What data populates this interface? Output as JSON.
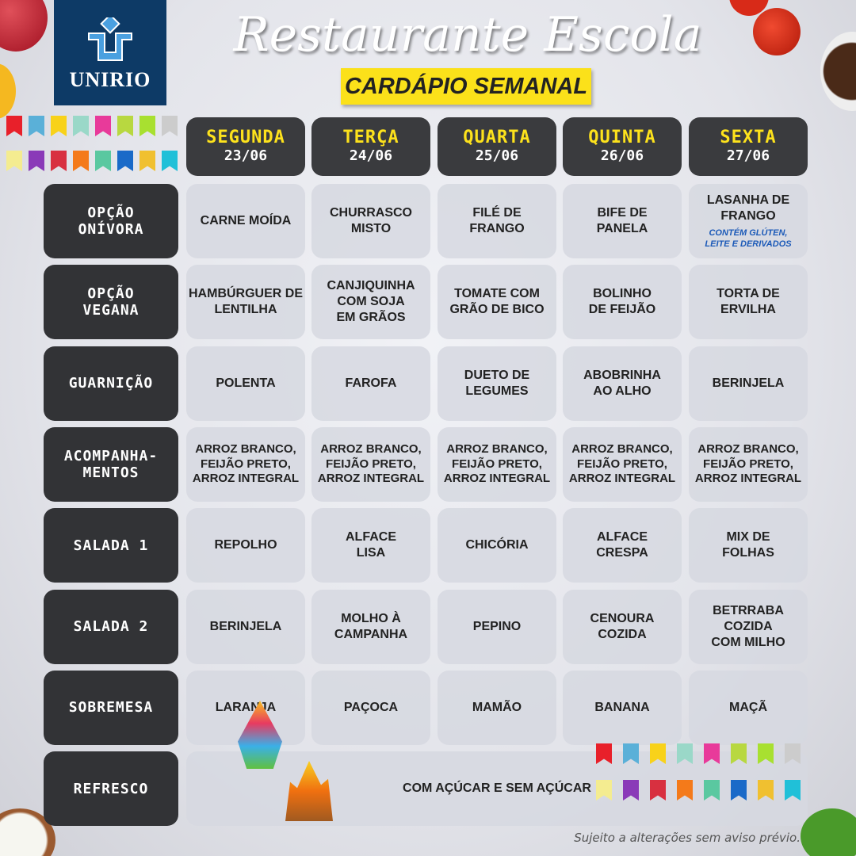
{
  "logo": {
    "text": "UNIRIO"
  },
  "title": "Restaurante Escola",
  "subtitle": "CARDÁPIO SEMANAL",
  "days": [
    {
      "name": "SEGUNDA",
      "date": "23/06"
    },
    {
      "name": "TERÇA",
      "date": "24/06"
    },
    {
      "name": "QUARTA",
      "date": "25/06"
    },
    {
      "name": "QUINTA",
      "date": "26/06"
    },
    {
      "name": "SEXTA",
      "date": "27/06"
    }
  ],
  "rows": [
    {
      "label": "OPÇÃO\nONÍVORA",
      "cells": [
        "CARNE MOÍDA",
        "CHURRASCO\nMISTO",
        "FILÉ DE\nFRANGO",
        "BIFE DE\nPANELA",
        "LASANHA DE\nFRANGO"
      ],
      "note": "CONTÉM GLÚTEN,\nLEITE E DERIVADOS"
    },
    {
      "label": "OPÇÃO\nVEGANA",
      "cells": [
        "HAMBÚRGUER DE\nLENTILHA",
        "CANJIQUINHA\nCOM SOJA\nEM GRÃOS",
        "TOMATE COM\nGRÃO DE BICO",
        "BOLINHO\nDE FEIJÃO",
        "TORTA DE\nERVILHA"
      ]
    },
    {
      "label": "GUARNIÇÃO",
      "cells": [
        "POLENTA",
        "FAROFA",
        "DUETO DE\nLEGUMES",
        "ABOBRINHA\nAO ALHO",
        "BERINJELA"
      ]
    },
    {
      "label": "ACOMPANHA-\nMENTOS",
      "cells": [
        "ARROZ BRANCO,\nFEIJÃO PRETO,\nARROZ INTEGRAL",
        "ARROZ BRANCO,\nFEIJÃO PRETO,\nARROZ INTEGRAL",
        "ARROZ BRANCO,\nFEIJÃO PRETO,\nARROZ INTEGRAL",
        "ARROZ BRANCO,\nFEIJÃO PRETO,\nARROZ INTEGRAL",
        "ARROZ BRANCO,\nFEIJÃO PRETO,\nARROZ INTEGRAL"
      ]
    },
    {
      "label": "SALADA 1",
      "cells": [
        "REPOLHO",
        "ALFACE\nLISA",
        "CHICÓRIA",
        "ALFACE\nCRESPA",
        "MIX DE\nFOLHAS"
      ]
    },
    {
      "label": "SALADA 2",
      "cells": [
        "BERINJELA",
        "MOLHO À\nCAMPANHA",
        "PEPINO",
        "CENOURA\nCOZIDA",
        "BETRRABA\nCOZIDA\nCOM MILHO"
      ]
    },
    {
      "label": "SOBREMESA",
      "cells": [
        "LARANJA",
        "PAÇOCA",
        "MAMÃO",
        "BANANA",
        "MAÇÃ"
      ]
    },
    {
      "label": "REFRESCO",
      "span": "COM AÇÚCAR E SEM AÇÚCAR"
    }
  ],
  "footer": "Sujeito a alterações sem aviso prévio.",
  "colors": {
    "header_bg": "#3a3b3e",
    "day_name": "#fde21c",
    "logo_bg": "#0d3a66",
    "note": "#1c5ab8",
    "subtitle_bg": "#fbe11a"
  }
}
